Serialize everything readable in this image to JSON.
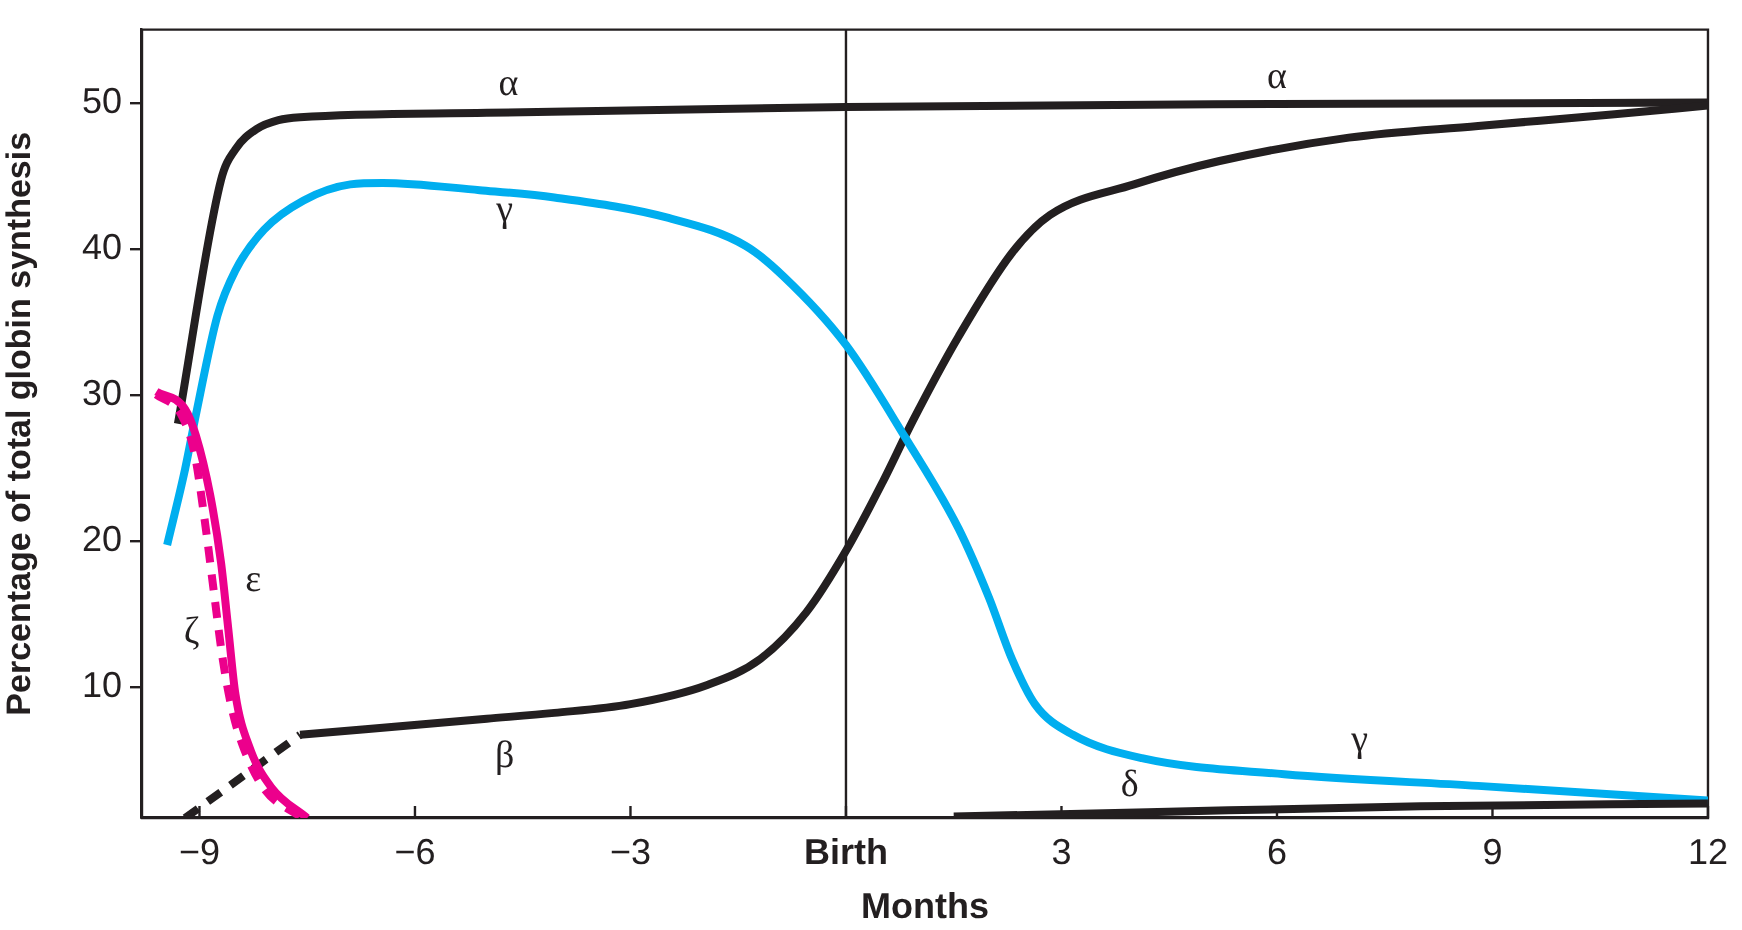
{
  "chart_data": {
    "type": "line",
    "xlabel": "Months",
    "ylabel": "Percentage of total globin synthesis",
    "xlim": [
      -9.8,
      12
    ],
    "ylim": [
      1,
      55
    ],
    "xticks": [
      -9,
      -6,
      -3,
      {
        "value": 0,
        "label": "Birth"
      },
      3,
      6,
      9,
      12
    ],
    "yticks": [
      10,
      20,
      30,
      40,
      50
    ],
    "grid": false,
    "marker": "none",
    "series": [
      {
        "color": "#231f20",
        "x": [
          -9.3,
          -8.7,
          -8.5,
          -8.2,
          -7.9,
          -7.6,
          -5,
          0,
          6,
          12
        ],
        "values": [
          28,
          44.7,
          46.8,
          48.2,
          48.8,
          49,
          49.3,
          49.7,
          49.9,
          50
        ]
      },
      {
        "color": "#231f20",
        "line_style": "dashed",
        "x": [
          -9.2,
          -7.6
        ],
        "values": [
          1,
          6.7
        ]
      },
      {
        "color": "#231f20",
        "x": [
          -7.6,
          -5,
          -4.06,
          -3,
          -1.94,
          -1.19,
          -0.55,
          0,
          0.51,
          0.93,
          1.57,
          2.31,
          2.84,
          4.01,
          5.2,
          7,
          8.8,
          10.7,
          12
        ],
        "values": [
          6.7,
          7.8,
          8.2,
          8.8,
          10.1,
          11.9,
          15.1,
          19.3,
          24,
          28.2,
          34,
          39.7,
          42.3,
          44.4,
          46,
          47.6,
          48.4,
          49.2,
          49.8
        ]
      },
      {
        "color": "#00aeef",
        "x": [
          -9.45,
          -9.2,
          -9.05,
          -8.75,
          -8.5,
          -8.1,
          -7.55,
          -6.9,
          -6.45,
          -5.1,
          -4.06,
          -2.47,
          -1.4,
          -0.87,
          0,
          0.82,
          1.57,
          1.99,
          2.31,
          2.63,
          3.16,
          4.12,
          6.1,
          8.8,
          12
        ],
        "values": [
          19.7,
          24.9,
          28.6,
          35.4,
          38.5,
          41.3,
          43.3,
          44.4,
          44.5,
          44,
          43.5,
          42.1,
          40.2,
          38.1,
          33.4,
          27.1,
          20.8,
          16.1,
          11.9,
          8.8,
          6.7,
          5.1,
          4,
          3.2,
          2.2
        ]
      },
      {
        "color": "#231f20",
        "x": [
          1.5,
          4.2,
          8,
          12
        ],
        "values": [
          1.1,
          1.4,
          1.8,
          2
        ]
      },
      {
        "color": "#ec008c",
        "x": [
          -9.6,
          -9.2,
          -9.05,
          -8.85,
          -8.7,
          -8.6,
          -8.5,
          -8.3,
          -8,
          -7.5
        ],
        "values": [
          30.2,
          29,
          27.2,
          23.1,
          18.5,
          14,
          9.5,
          5.8,
          3.1,
          1
        ]
      },
      {
        "color": "#ec008c",
        "line_style": "dashed",
        "x": [
          -9.6,
          -9.25,
          -9.07,
          -8.93,
          -8.8,
          -8.68,
          -8.55,
          -8.4,
          -8.1,
          -7.6
        ],
        "values": [
          30,
          28.6,
          26,
          21.5,
          16.5,
          12,
          8.5,
          6,
          3,
          1.1
        ]
      }
    ],
    "ref_lines": [
      {
        "axis": "x",
        "value": 0,
        "color": "#231f20"
      }
    ],
    "annotations": [
      {
        "text": "α",
        "x": -4.7,
        "y": 49.3
      },
      {
        "text": "α",
        "x": 6,
        "y": 49.9
      },
      {
        "text": "γ",
        "x": -4.75,
        "y": 43.8
      },
      {
        "text": "γ",
        "x": 7.15,
        "y": 3.7
      },
      {
        "text": "β",
        "x": -4.75,
        "y": 7.9
      },
      {
        "text": "δ",
        "x": 3.95,
        "y": 1.4
      },
      {
        "text": "ε",
        "x": -8.67,
        "y": 17.2
      },
      {
        "text": "ζ",
        "x": -8.72,
        "y": 13.5
      }
    ]
  }
}
